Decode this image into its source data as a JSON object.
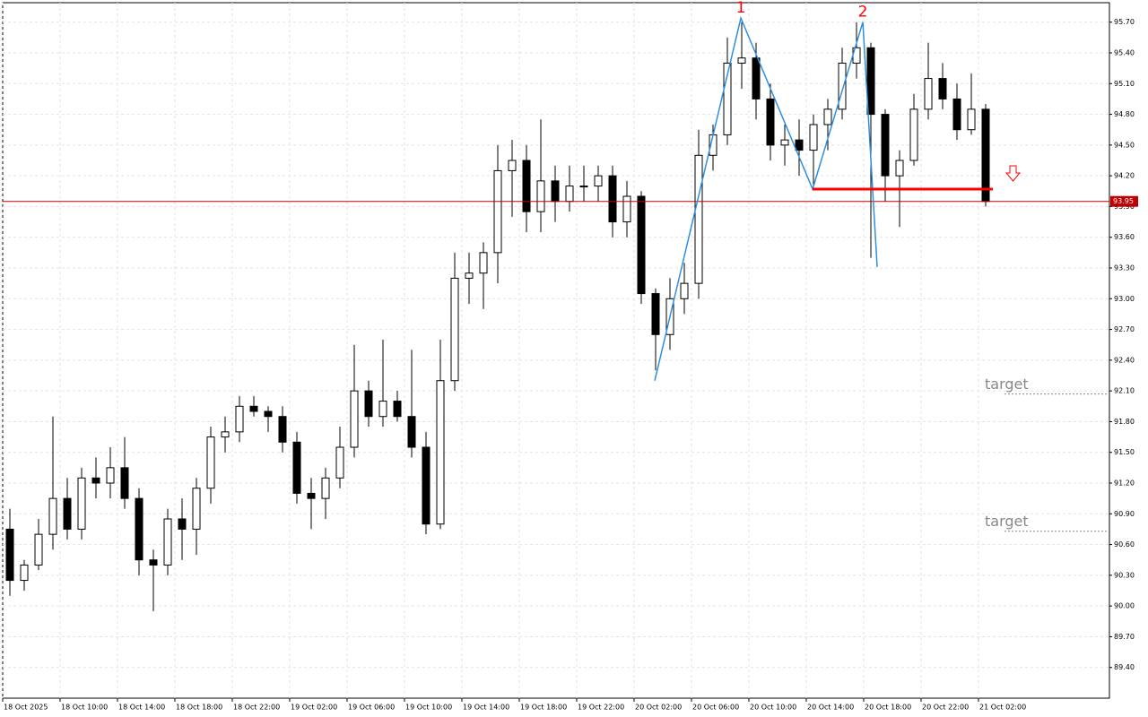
{
  "chart_data": {
    "type": "candlestick",
    "up_color": "#ffffff",
    "down_color": "#000000",
    "outline_color": "#000000",
    "grid": true,
    "x": [
      0,
      1,
      2,
      3,
      4,
      5,
      6,
      7,
      8,
      9,
      10,
      11,
      12,
      13,
      14,
      15,
      16,
      17,
      18,
      19,
      20,
      21,
      22,
      23,
      24,
      25,
      26,
      27,
      28,
      29,
      30,
      31,
      32,
      33,
      34,
      35,
      36,
      37,
      38,
      39,
      40,
      41,
      42,
      43,
      44,
      45,
      46,
      47,
      48,
      49,
      50,
      51,
      52,
      53,
      54,
      55,
      56,
      57,
      58,
      59,
      60,
      61,
      62,
      63,
      64,
      65,
      66,
      67,
      68
    ],
    "open": [
      90.75,
      90.25,
      90.4,
      90.7,
      91.05,
      90.75,
      91.25,
      91.2,
      91.35,
      91.05,
      90.45,
      90.4,
      90.85,
      90.75,
      91.15,
      91.65,
      91.7,
      91.95,
      91.9,
      91.85,
      91.6,
      91.1,
      91.05,
      91.25,
      91.55,
      92.1,
      91.85,
      92.0,
      91.85,
      91.55,
      90.8,
      92.2,
      93.2,
      93.25,
      93.45,
      94.25,
      94.35,
      93.85,
      94.15,
      93.95,
      94.1,
      94.1,
      94.2,
      93.75,
      94.0,
      93.05,
      92.65,
      93.0,
      93.15,
      94.4,
      94.6,
      95.3,
      95.35,
      94.95,
      94.5,
      94.55,
      94.45,
      94.7,
      94.85,
      95.3,
      95.45,
      94.8,
      94.2,
      94.35,
      94.85,
      95.15,
      94.95,
      94.65,
      94.85
    ],
    "high": [
      90.95,
      90.45,
      90.85,
      91.85,
      91.25,
      91.35,
      91.45,
      91.55,
      91.65,
      91.15,
      90.55,
      90.95,
      91.05,
      91.25,
      91.75,
      91.85,
      92.05,
      92.05,
      91.95,
      91.95,
      91.7,
      91.25,
      91.35,
      91.75,
      92.55,
      92.2,
      92.6,
      92.1,
      92.5,
      91.7,
      92.6,
      93.45,
      93.45,
      93.55,
      94.5,
      94.55,
      94.5,
      94.75,
      94.3,
      94.3,
      94.3,
      94.3,
      94.3,
      94.15,
      94.05,
      93.1,
      93.2,
      93.35,
      94.65,
      94.7,
      95.55,
      95.7,
      95.5,
      95.1,
      94.7,
      94.75,
      94.8,
      94.95,
      95.45,
      95.7,
      95.5,
      94.85,
      94.45,
      95.0,
      95.5,
      95.3,
      95.1,
      95.2,
      94.9
    ],
    "low": [
      90.1,
      90.15,
      90.35,
      90.55,
      90.65,
      90.65,
      91.05,
      91.05,
      90.95,
      90.3,
      89.95,
      90.3,
      90.45,
      90.5,
      91.0,
      91.5,
      91.6,
      91.85,
      91.7,
      91.5,
      91.0,
      90.75,
      90.85,
      91.15,
      91.45,
      91.75,
      91.75,
      91.8,
      91.45,
      90.7,
      90.75,
      92.1,
      92.95,
      92.9,
      93.15,
      93.8,
      93.65,
      93.65,
      93.75,
      93.85,
      93.95,
      93.95,
      93.6,
      93.6,
      92.95,
      92.3,
      92.5,
      92.85,
      93.0,
      94.25,
      94.5,
      95.05,
      94.75,
      94.35,
      94.3,
      94.2,
      94.1,
      94.45,
      94.75,
      95.15,
      93.4,
      93.95,
      93.7,
      94.3,
      94.75,
      94.85,
      94.55,
      94.6,
      93.9
    ],
    "close": [
      90.25,
      90.4,
      90.7,
      91.05,
      90.75,
      91.25,
      91.2,
      91.35,
      91.05,
      90.45,
      90.4,
      90.85,
      90.75,
      91.15,
      91.65,
      91.7,
      91.95,
      91.9,
      91.85,
      91.6,
      91.1,
      91.05,
      91.25,
      91.55,
      92.1,
      91.85,
      92.0,
      91.85,
      91.55,
      90.8,
      92.2,
      93.2,
      93.25,
      93.45,
      94.25,
      94.35,
      93.85,
      94.15,
      93.95,
      94.1,
      94.1,
      94.2,
      93.75,
      94.0,
      93.05,
      92.65,
      93.0,
      93.15,
      94.4,
      94.6,
      95.3,
      95.35,
      94.95,
      94.5,
      94.55,
      94.45,
      94.7,
      94.85,
      95.3,
      95.45,
      94.8,
      94.2,
      94.35,
      94.85,
      95.15,
      94.95,
      94.65,
      94.85,
      93.95
    ],
    "xlim": [
      0,
      77.125
    ],
    "ylim": [
      89.1,
      95.89
    ],
    "xticks": [
      {
        "value": 0,
        "label": "18 Oct 2025"
      },
      {
        "value": 4,
        "label": "18 Oct 10:00"
      },
      {
        "value": 8,
        "label": "18 Oct 14:00"
      },
      {
        "value": 12,
        "label": "18 Oct 18:00"
      },
      {
        "value": 16,
        "label": "18 Oct 22:00"
      },
      {
        "value": 20,
        "label": "19 Oct 02:00"
      },
      {
        "value": 24,
        "label": "19 Oct 06:00"
      },
      {
        "value": 28,
        "label": "19 Oct 10:00"
      },
      {
        "value": 32,
        "label": "19 Oct 14:00"
      },
      {
        "value": 36,
        "label": "19 Oct 18:00"
      },
      {
        "value": 40,
        "label": "19 Oct 22:00"
      },
      {
        "value": 44,
        "label": "20 Oct 02:00"
      },
      {
        "value": 48,
        "label": "20 Oct 06:00"
      },
      {
        "value": 52,
        "label": "20 Oct 10:00"
      },
      {
        "value": 56,
        "label": "20 Oct 14:00"
      },
      {
        "value": 60,
        "label": "20 Oct 18:00"
      },
      {
        "value": 64,
        "label": "20 Oct 22:00"
      },
      {
        "value": 68,
        "label": "21 Oct 02:00"
      }
    ],
    "yticks": [
      {
        "value": 89.4,
        "label": "89.40"
      },
      {
        "value": 89.7,
        "label": "89.70"
      },
      {
        "value": 90.0,
        "label": "90.00"
      },
      {
        "value": 90.3,
        "label": "90.30"
      },
      {
        "value": 90.6,
        "label": "90.60"
      },
      {
        "value": 90.9,
        "label": "90.90"
      },
      {
        "value": 91.2,
        "label": "91.20"
      },
      {
        "value": 91.5,
        "label": "91.50"
      },
      {
        "value": 91.8,
        "label": "91.80"
      },
      {
        "value": 92.1,
        "label": "92.10"
      },
      {
        "value": 92.4,
        "label": "92.40"
      },
      {
        "value": 92.7,
        "label": "92.70"
      },
      {
        "value": 93.0,
        "label": "93.00"
      },
      {
        "value": 93.3,
        "label": "93.30"
      },
      {
        "value": 93.6,
        "label": "93.60"
      },
      {
        "value": 93.9,
        "label": "93.90"
      },
      {
        "value": 94.2,
        "label": "94.20"
      },
      {
        "value": 94.5,
        "label": "94.50"
      },
      {
        "value": 94.8,
        "label": "94.80"
      },
      {
        "value": 95.1,
        "label": "95.10"
      },
      {
        "value": 95.4,
        "label": "95.40"
      },
      {
        "value": 95.7,
        "label": "95.70"
      }
    ],
    "current_price": {
      "value": 93.95,
      "label": "93.95",
      "color": "#c00000"
    },
    "zigzag": {
      "color": "#2e8fe0",
      "x": [
        45.44,
        51.44,
        56.44,
        59.94,
        60.94
      ],
      "y": [
        92.2,
        95.74,
        94.07,
        95.7,
        93.31
      ],
      "labels": [
        "1",
        "2"
      ],
      "label_color": "#ff0000"
    },
    "neckline": {
      "value": 94.07,
      "x": [
        56.44,
        69.0
      ],
      "color": "#ff0000"
    },
    "targets": [
      {
        "text": "target",
        "value": 92.07
      },
      {
        "text": "target",
        "value": 90.73
      }
    ]
  }
}
